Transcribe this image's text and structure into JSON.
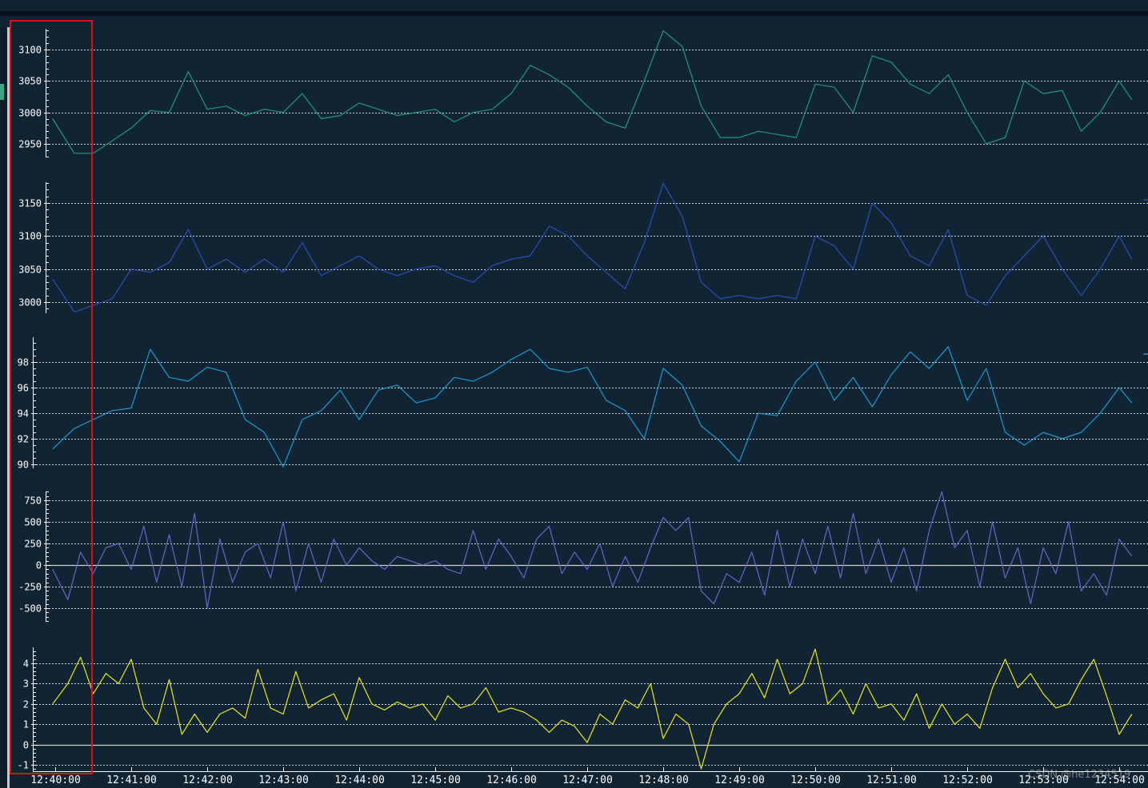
{
  "chart_data": [
    {
      "type": "line",
      "panel": 1,
      "title": "",
      "color": "#1f9a76",
      "yticks": [
        2950,
        3000,
        3050,
        3100
      ],
      "ylim": [
        2925,
        3135
      ],
      "grid": true,
      "x": [
        "12:39:58",
        "12:40:15",
        "12:40:30",
        "12:40:45",
        "12:41:00",
        "12:41:15",
        "12:41:30",
        "12:41:45",
        "12:42:00",
        "12:42:15",
        "12:42:30",
        "12:42:45",
        "12:43:00",
        "12:43:15",
        "12:43:30",
        "12:43:45",
        "12:44:00",
        "12:44:15",
        "12:44:30",
        "12:44:45",
        "12:45:00",
        "12:45:15",
        "12:45:30",
        "12:45:45",
        "12:46:00",
        "12:46:15",
        "12:46:30",
        "12:46:45",
        "12:47:00",
        "12:47:15",
        "12:47:30",
        "12:47:45",
        "12:48:00",
        "12:48:15",
        "12:48:30",
        "12:48:45",
        "12:49:00",
        "12:49:15",
        "12:49:30",
        "12:49:45",
        "12:50:00",
        "12:50:15",
        "12:50:30",
        "12:50:45",
        "12:51:00",
        "12:51:15",
        "12:51:30",
        "12:51:45",
        "12:52:00",
        "12:52:15",
        "12:52:30",
        "12:52:45",
        "12:53:00",
        "12:53:15",
        "12:53:30",
        "12:53:45",
        "12:54:00",
        "12:54:10"
      ],
      "values": [
        2990,
        2935,
        2935,
        2955,
        2975,
        3003,
        3000,
        3065,
        3005,
        3010,
        2995,
        3005,
        3000,
        3030,
        2990,
        2995,
        3015,
        3005,
        2995,
        3000,
        3005,
        2985,
        3000,
        3005,
        3030,
        3075,
        3060,
        3040,
        3010,
        2985,
        2975,
        3050,
        3130,
        3105,
        3010,
        2960,
        2960,
        2970,
        2965,
        2960,
        3045,
        3040,
        3000,
        3090,
        3080,
        3045,
        3030,
        3060,
        3000,
        2950,
        2960,
        3050,
        3030,
        3035,
        2970,
        3000,
        3050,
        3020
      ]
    },
    {
      "type": "line",
      "panel": 2,
      "title": "",
      "color": "#2a4fb8",
      "yticks": [
        3000,
        3050,
        3100,
        3150
      ],
      "ylim": [
        2985,
        3185
      ],
      "grid": true,
      "x": [
        "12:39:58",
        "12:40:15",
        "12:40:30",
        "12:40:45",
        "12:41:00",
        "12:41:15",
        "12:41:30",
        "12:41:45",
        "12:42:00",
        "12:42:15",
        "12:42:30",
        "12:42:45",
        "12:43:00",
        "12:43:15",
        "12:43:30",
        "12:43:45",
        "12:44:00",
        "12:44:15",
        "12:44:30",
        "12:44:45",
        "12:45:00",
        "12:45:15",
        "12:45:30",
        "12:45:45",
        "12:46:00",
        "12:46:15",
        "12:46:30",
        "12:46:45",
        "12:47:00",
        "12:47:15",
        "12:47:30",
        "12:47:45",
        "12:48:00",
        "12:48:15",
        "12:48:30",
        "12:48:45",
        "12:49:00",
        "12:49:15",
        "12:49:30",
        "12:49:45",
        "12:50:00",
        "12:50:15",
        "12:50:30",
        "12:50:45",
        "12:51:00",
        "12:51:15",
        "12:51:30",
        "12:51:45",
        "12:52:00",
        "12:52:15",
        "12:52:30",
        "12:52:45",
        "12:53:00",
        "12:53:15",
        "12:53:30",
        "12:53:45",
        "12:54:00",
        "12:54:10"
      ],
      "values": [
        3035,
        2985,
        2995,
        3005,
        3050,
        3045,
        3060,
        3110,
        3050,
        3065,
        3045,
        3065,
        3045,
        3090,
        3040,
        3055,
        3070,
        3050,
        3040,
        3050,
        3055,
        3040,
        3030,
        3055,
        3065,
        3070,
        3115,
        3100,
        3070,
        3045,
        3020,
        3090,
        3180,
        3130,
        3030,
        3005,
        3010,
        3005,
        3010,
        3005,
        3100,
        3085,
        3050,
        3150,
        3120,
        3070,
        3055,
        3110,
        3010,
        2995,
        3040,
        3070,
        3100,
        3050,
        3010,
        3050,
        3100,
        3065
      ]
    },
    {
      "type": "line",
      "panel": 3,
      "title": "",
      "color": "#1a9bd0",
      "yticks": [
        90,
        92,
        94,
        96,
        98
      ],
      "ylim": [
        89.5,
        99.8
      ],
      "grid": true,
      "x": [
        "12:39:58",
        "12:40:15",
        "12:40:30",
        "12:40:45",
        "12:41:00",
        "12:41:15",
        "12:41:30",
        "12:41:45",
        "12:42:00",
        "12:42:15",
        "12:42:30",
        "12:42:45",
        "12:43:00",
        "12:43:15",
        "12:43:30",
        "12:43:45",
        "12:44:00",
        "12:44:15",
        "12:44:30",
        "12:44:45",
        "12:45:00",
        "12:45:15",
        "12:45:30",
        "12:45:45",
        "12:46:00",
        "12:46:15",
        "12:46:30",
        "12:46:45",
        "12:47:00",
        "12:47:15",
        "12:47:30",
        "12:47:45",
        "12:48:00",
        "12:48:15",
        "12:48:30",
        "12:48:45",
        "12:49:00",
        "12:49:15",
        "12:49:30",
        "12:49:45",
        "12:50:00",
        "12:50:15",
        "12:50:30",
        "12:50:45",
        "12:51:00",
        "12:51:15",
        "12:51:30",
        "12:51:45",
        "12:52:00",
        "12:52:15",
        "12:52:30",
        "12:52:45",
        "12:53:00",
        "12:53:15",
        "12:53:30",
        "12:53:45",
        "12:54:00",
        "12:54:10"
      ],
      "values": [
        91.2,
        92.8,
        93.5,
        94.2,
        94.4,
        99.0,
        96.8,
        96.5,
        97.6,
        97.2,
        93.5,
        92.5,
        89.8,
        93.5,
        94.2,
        95.8,
        93.5,
        95.8,
        96.2,
        94.8,
        95.2,
        96.8,
        96.5,
        97.2,
        98.2,
        99.0,
        97.5,
        97.2,
        97.6,
        95.0,
        94.2,
        92.0,
        97.5,
        96.2,
        93.0,
        91.8,
        90.2,
        94.0,
        93.8,
        96.5,
        98.0,
        95.0,
        96.8,
        94.5,
        97.0,
        98.8,
        97.5,
        99.2,
        95.0,
        97.5,
        92.5,
        91.5,
        92.5,
        92.0,
        92.5,
        94.0,
        96.0,
        94.8
      ]
    },
    {
      "type": "line",
      "panel": 4,
      "title": "",
      "color": "#6a63c8",
      "yticks": [
        -500,
        -250,
        0,
        250,
        500,
        750
      ],
      "ylim": [
        -650,
        850
      ],
      "grid": true,
      "zero_line": true,
      "x": [
        "12:39:58",
        "12:40:10",
        "12:40:20",
        "12:40:30",
        "12:40:40",
        "12:40:50",
        "12:41:00",
        "12:41:10",
        "12:41:20",
        "12:41:30",
        "12:41:40",
        "12:41:50",
        "12:42:00",
        "12:42:10",
        "12:42:20",
        "12:42:30",
        "12:42:40",
        "12:42:50",
        "12:43:00",
        "12:43:10",
        "12:43:20",
        "12:43:30",
        "12:43:40",
        "12:43:50",
        "12:44:00",
        "12:44:10",
        "12:44:20",
        "12:44:30",
        "12:44:40",
        "12:44:50",
        "12:45:00",
        "12:45:10",
        "12:45:20",
        "12:45:30",
        "12:45:40",
        "12:45:50",
        "12:46:00",
        "12:46:10",
        "12:46:20",
        "12:46:30",
        "12:46:40",
        "12:46:50",
        "12:47:00",
        "12:47:10",
        "12:47:20",
        "12:47:30",
        "12:47:40",
        "12:47:50",
        "12:48:00",
        "12:48:10",
        "12:48:20",
        "12:48:30",
        "12:48:40",
        "12:48:50",
        "12:49:00",
        "12:49:10",
        "12:49:20",
        "12:49:30",
        "12:49:40",
        "12:49:50",
        "12:50:00",
        "12:50:10",
        "12:50:20",
        "12:50:30",
        "12:50:40",
        "12:50:50",
        "12:51:00",
        "12:51:10",
        "12:51:20",
        "12:51:30",
        "12:51:40",
        "12:51:50",
        "12:52:00",
        "12:52:10",
        "12:52:20",
        "12:52:30",
        "12:52:40",
        "12:52:50",
        "12:53:00",
        "12:53:10",
        "12:53:20",
        "12:53:30",
        "12:53:40",
        "12:53:50",
        "12:54:00",
        "12:54:10"
      ],
      "values": [
        -50,
        -400,
        150,
        -100,
        200,
        250,
        -50,
        450,
        -200,
        350,
        -250,
        600,
        -500,
        300,
        -200,
        150,
        250,
        -150,
        500,
        -300,
        250,
        -200,
        300,
        0,
        200,
        50,
        -50,
        100,
        50,
        0,
        50,
        -50,
        -100,
        400,
        -50,
        300,
        100,
        -150,
        300,
        450,
        -100,
        150,
        -50,
        250,
        -250,
        100,
        -200,
        200,
        550,
        400,
        550,
        -300,
        -450,
        -100,
        -200,
        150,
        -350,
        400,
        -250,
        300,
        -100,
        450,
        -150,
        600,
        -100,
        300,
        -200,
        200,
        -300,
        400,
        850,
        200,
        400,
        -250,
        500,
        -150,
        200,
        -450,
        200,
        -100,
        500,
        -300,
        -100,
        -350,
        300,
        100
      ]
    },
    {
      "type": "line",
      "panel": 5,
      "title": "",
      "color": "#e8e812",
      "yticks": [
        -1,
        0,
        1,
        2,
        3,
        4
      ],
      "ylim": [
        -1.3,
        4.9
      ],
      "grid": true,
      "zero_line": true,
      "xaxis_ticks": [
        "12:40:00",
        "12:41:00",
        "12:42:00",
        "12:43:00",
        "12:44:00",
        "12:45:00",
        "12:46:00",
        "12:47:00",
        "12:48:00",
        "12:49:00",
        "12:50:00",
        "12:51:00",
        "12:52:00",
        "12:53:00",
        "12:54:00"
      ],
      "x": [
        "12:39:58",
        "12:40:10",
        "12:40:20",
        "12:40:30",
        "12:40:40",
        "12:40:50",
        "12:41:00",
        "12:41:10",
        "12:41:20",
        "12:41:30",
        "12:41:40",
        "12:41:50",
        "12:42:00",
        "12:42:10",
        "12:42:20",
        "12:42:30",
        "12:42:40",
        "12:42:50",
        "12:43:00",
        "12:43:10",
        "12:43:20",
        "12:43:30",
        "12:43:40",
        "12:43:50",
        "12:44:00",
        "12:44:10",
        "12:44:20",
        "12:44:30",
        "12:44:40",
        "12:44:50",
        "12:45:00",
        "12:45:10",
        "12:45:20",
        "12:45:30",
        "12:45:40",
        "12:45:50",
        "12:46:00",
        "12:46:10",
        "12:46:20",
        "12:46:30",
        "12:46:40",
        "12:46:50",
        "12:47:00",
        "12:47:10",
        "12:47:20",
        "12:47:30",
        "12:47:40",
        "12:47:50",
        "12:48:00",
        "12:48:10",
        "12:48:20",
        "12:48:30",
        "12:48:40",
        "12:48:50",
        "12:49:00",
        "12:49:10",
        "12:49:20",
        "12:49:30",
        "12:49:40",
        "12:49:50",
        "12:50:00",
        "12:50:10",
        "12:50:20",
        "12:50:30",
        "12:50:40",
        "12:50:50",
        "12:51:00",
        "12:51:10",
        "12:51:20",
        "12:51:30",
        "12:51:40",
        "12:51:50",
        "12:52:00",
        "12:52:10",
        "12:52:20",
        "12:52:30",
        "12:52:40",
        "12:52:50",
        "12:53:00",
        "12:53:10",
        "12:53:20",
        "12:53:30",
        "12:53:40",
        "12:53:50",
        "12:54:00",
        "12:54:10"
      ],
      "values": [
        2.0,
        3.0,
        4.3,
        2.5,
        3.5,
        3.0,
        4.2,
        1.8,
        1.0,
        3.2,
        0.5,
        1.5,
        0.6,
        1.5,
        1.8,
        1.3,
        3.7,
        1.8,
        1.5,
        3.6,
        1.8,
        2.2,
        2.5,
        1.2,
        3.3,
        2.0,
        1.7,
        2.1,
        1.8,
        2.0,
        1.2,
        2.4,
        1.8,
        2.0,
        2.8,
        1.6,
        1.8,
        1.6,
        1.2,
        0.6,
        1.2,
        0.9,
        0.1,
        1.5,
        1.0,
        2.2,
        1.8,
        3.0,
        0.3,
        1.5,
        1.0,
        -1.2,
        1.0,
        2.0,
        2.5,
        3.5,
        2.3,
        4.2,
        2.5,
        3.0,
        4.7,
        2.0,
        2.7,
        1.5,
        3.0,
        1.8,
        2.0,
        1.2,
        2.5,
        0.8,
        2.0,
        1.0,
        1.5,
        0.8,
        2.8,
        4.2,
        2.8,
        3.5,
        2.5,
        1.8,
        2.0,
        3.2,
        4.2,
        2.4,
        0.5,
        1.5
      ]
    }
  ],
  "axis": {
    "time_labels": [
      "12:40:00",
      "12:41:00",
      "12:42:00",
      "12:43:00",
      "12:44:00",
      "12:45:00",
      "12:46:00",
      "12:47:00",
      "12:48:00",
      "12:49:00",
      "12:50:00",
      "12:51:00",
      "12:52:00",
      "12:53:00",
      "12:54:00"
    ]
  },
  "selection": {
    "color": "#e01010",
    "from": "12:39:45",
    "to": "12:40:30"
  },
  "watermark": "CSDN @he1234519"
}
